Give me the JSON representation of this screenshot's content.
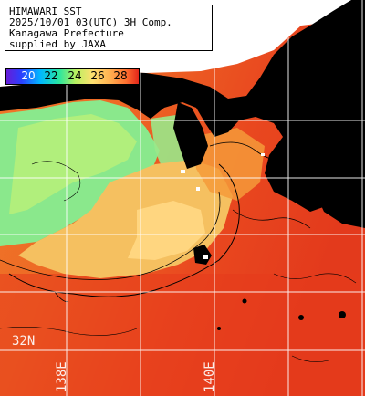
{
  "title_block": {
    "line1": "HIMAWARI SST",
    "line2": "2025/10/01 03(UTC) 3H Comp.",
    "line3": "Kanagawa Prefecture",
    "line4": "supplied by JAXA"
  },
  "colorbar": {
    "labels": [
      "20",
      "22",
      "24",
      "26",
      "28"
    ],
    "colors": [
      "#6a1bd6",
      "#2a40ff",
      "#00b8ff",
      "#28e6a0",
      "#b6f060",
      "#ffe070",
      "#ffb050",
      "#ff7030",
      "#e02018"
    ]
  },
  "grid": {
    "lat_label": "32N",
    "lon_labels": [
      "138E",
      "140E"
    ]
  },
  "colors": {
    "land": "#000000",
    "cloud_mask": "#ffffff",
    "warm_sea": "#e23a1c",
    "bay_water": "#f5c060",
    "cool_water": "#8ae88c",
    "gridline": "#ffffff",
    "contour": "#000000"
  }
}
